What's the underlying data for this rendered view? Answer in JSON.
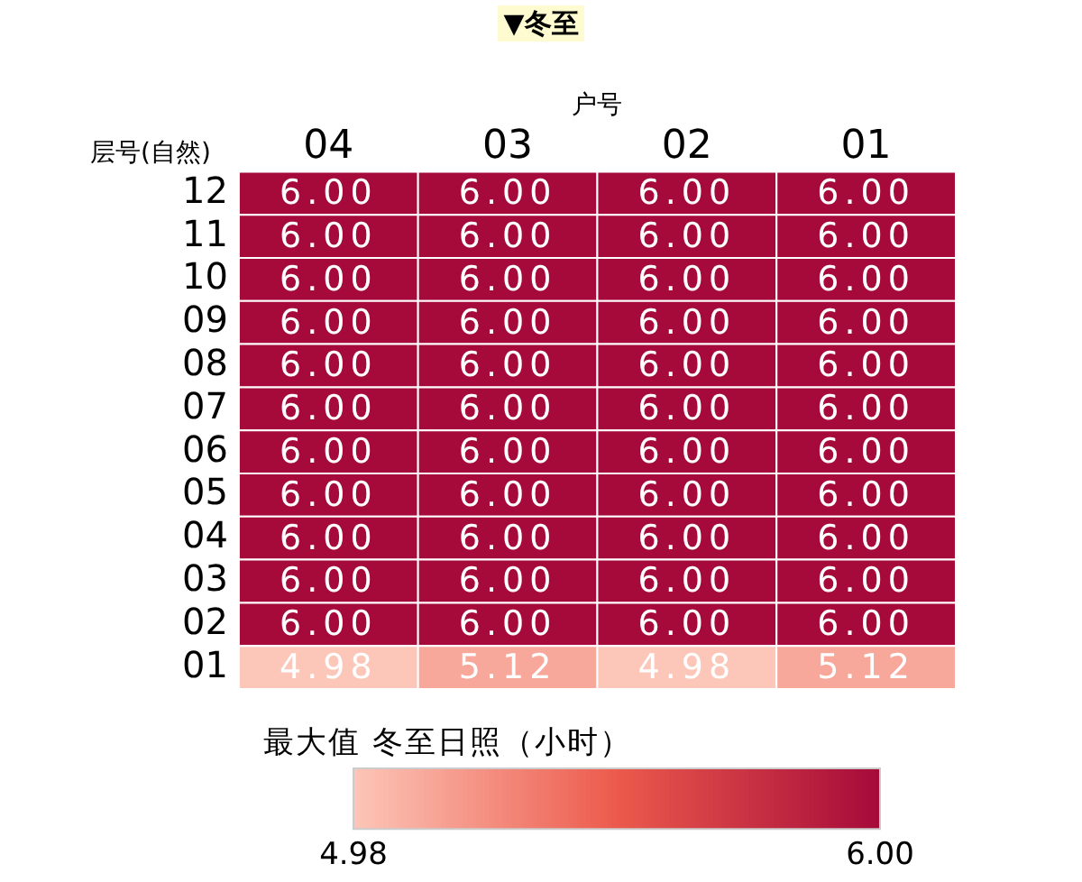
{
  "chart_data": {
    "type": "heatmap",
    "title": "▼冬至",
    "xlabel": "户号",
    "ylabel": "层号(自然)",
    "clabel": "最大值 冬至日照（小时）",
    "categories": [
      "04",
      "03",
      "02",
      "01"
    ],
    "y_categories": [
      "12",
      "11",
      "10",
      "09",
      "08",
      "07",
      "06",
      "05",
      "04",
      "03",
      "02",
      "01"
    ],
    "cells": [
      [
        6,
        6,
        6,
        6
      ],
      [
        6,
        6,
        6,
        6
      ],
      [
        6,
        6,
        6,
        6
      ],
      [
        6,
        6,
        6,
        6
      ],
      [
        6,
        6,
        6,
        6
      ],
      [
        6,
        6,
        6,
        6
      ],
      [
        6,
        6,
        6,
        6
      ],
      [
        6,
        6,
        6,
        6
      ],
      [
        6,
        6,
        6,
        6
      ],
      [
        6,
        6,
        6,
        6
      ],
      [
        6,
        6,
        6,
        6
      ],
      [
        4.98,
        5.12,
        4.98,
        5.12
      ]
    ],
    "cell_labels": [
      [
        "6.00",
        "6.00",
        "6.00",
        "6.00"
      ],
      [
        "6.00",
        "6.00",
        "6.00",
        "6.00"
      ],
      [
        "6.00",
        "6.00",
        "6.00",
        "6.00"
      ],
      [
        "6.00",
        "6.00",
        "6.00",
        "6.00"
      ],
      [
        "6.00",
        "6.00",
        "6.00",
        "6.00"
      ],
      [
        "6.00",
        "6.00",
        "6.00",
        "6.00"
      ],
      [
        "6.00",
        "6.00",
        "6.00",
        "6.00"
      ],
      [
        "6.00",
        "6.00",
        "6.00",
        "6.00"
      ],
      [
        "6.00",
        "6.00",
        "6.00",
        "6.00"
      ],
      [
        "6.00",
        "6.00",
        "6.00",
        "6.00"
      ],
      [
        "6.00",
        "6.00",
        "6.00",
        "6.00"
      ],
      [
        "4.98",
        "5.12",
        "4.98",
        "5.12"
      ]
    ],
    "clim": [
      4.98,
      6
    ],
    "cticks": [
      {
        "value": 4.98,
        "label": "4.98"
      },
      {
        "value": 6,
        "label": "6.00"
      }
    ]
  }
}
